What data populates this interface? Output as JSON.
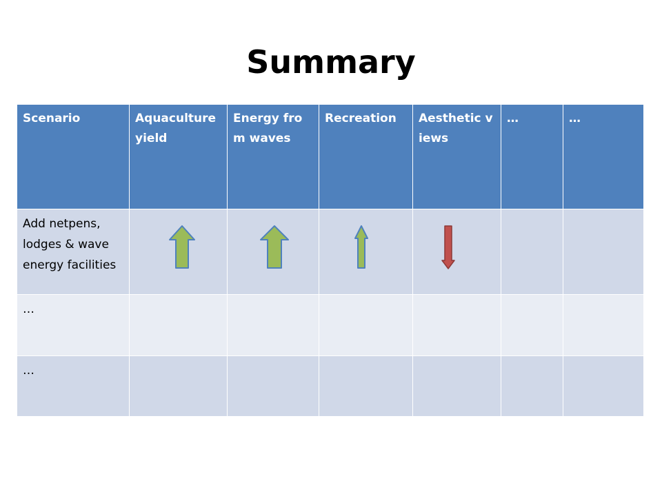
{
  "slide": {
    "title": "Summary"
  },
  "table": {
    "headers": [
      "Scenario",
      "Aquaculture yield",
      "Energy from waves",
      "Recreation",
      "Aesthetic views",
      "…",
      "…"
    ],
    "rows": [
      {
        "scenario": "Add netpens, lodges & wave energy facilities",
        "effects": [
          "up-arrow-icon",
          "up-arrow-icon",
          "up-arrow-icon",
          "down-arrow-icon",
          "",
          ""
        ]
      },
      {
        "scenario": "…",
        "effects": [
          "",
          "",
          "",
          "",
          "",
          ""
        ]
      },
      {
        "scenario": "…",
        "effects": [
          "",
          "",
          "",
          "",
          "",
          ""
        ]
      }
    ]
  },
  "colors": {
    "header": "#4f81bd",
    "row_dark": "#d0d8e8",
    "row_light": "#e9edf4",
    "increase_arrow": "#9bbb59",
    "decrease_arrow": "#c0504d"
  }
}
